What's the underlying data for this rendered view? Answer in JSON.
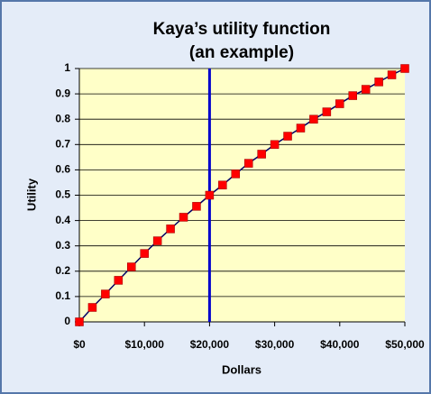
{
  "chart_data": {
    "type": "line",
    "title": [
      "Kaya’s utility function",
      "(an example)"
    ],
    "x_label": "Dollars",
    "y_label": "Utility",
    "x": [
      0,
      2000,
      4000,
      6000,
      8000,
      10000,
      12000,
      14000,
      16000,
      18000,
      20000,
      22000,
      24000,
      26000,
      28000,
      30000,
      32000,
      34000,
      36000,
      38000,
      40000,
      42000,
      44000,
      46000,
      48000,
      50000
    ],
    "series": [
      {
        "name": "Utility",
        "color": "#ff0000",
        "line_color": "#000066",
        "values": [
          0,
          0.057,
          0.11,
          0.164,
          0.217,
          0.27,
          0.32,
          0.367,
          0.413,
          0.456,
          0.5,
          0.54,
          0.584,
          0.626,
          0.662,
          0.7,
          0.733,
          0.765,
          0.8,
          0.829,
          0.861,
          0.893,
          0.918,
          0.947,
          0.975,
          1
        ]
      }
    ],
    "vline": {
      "x": 20000,
      "color": "#0000cc"
    },
    "xlim": [
      0,
      50000
    ],
    "xticks": [
      {
        "value": 0,
        "label": "$0"
      },
      {
        "value": 10000,
        "label": "$10,000"
      },
      {
        "value": 20000,
        "label": "$20,000"
      },
      {
        "value": 30000,
        "label": "$30,000"
      },
      {
        "value": 40000,
        "label": "$40,000"
      },
      {
        "value": 50000,
        "label": "$50,000"
      }
    ],
    "ylim": [
      0,
      1
    ],
    "yticks": [
      0,
      0.1,
      0.2,
      0.3,
      0.4,
      0.5,
      0.6,
      0.7,
      0.8,
      0.9,
      1
    ],
    "grid": true
  }
}
